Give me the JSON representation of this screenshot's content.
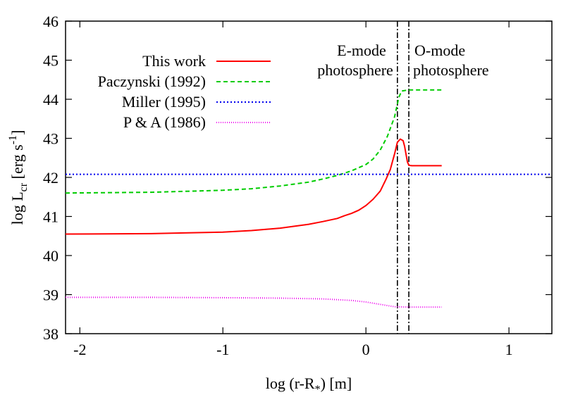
{
  "chart_data": {
    "type": "line",
    "title": "",
    "xlabel_parts": {
      "main": "log (r-R",
      "sub": "*",
      "tail": ") [m]"
    },
    "ylabel_parts": {
      "main": "log L",
      "sub": "cr",
      "mid": " [erg s",
      "sup": "-1",
      "tail": "]"
    },
    "xlim": [
      -2.1,
      1.3
    ],
    "ylim": [
      38,
      46
    ],
    "xticks": [
      -2,
      -1,
      0,
      1
    ],
    "xtick_labels": [
      "-2",
      "-1",
      "0",
      "1"
    ],
    "yticks": [
      38,
      39,
      40,
      41,
      42,
      43,
      44,
      45,
      46
    ],
    "ytick_labels": [
      "38",
      "39",
      "40",
      "41",
      "42",
      "43",
      "44",
      "45",
      "46"
    ],
    "grid": false,
    "legend_position": "top-left",
    "series": [
      {
        "name": "This work",
        "color": "#ff0000",
        "dash": "solid",
        "x": [
          -2.1,
          -1.5,
          -1.0,
          -0.8,
          -0.6,
          -0.4,
          -0.3,
          -0.2,
          -0.15,
          -0.1,
          -0.05,
          0.0,
          0.05,
          0.1,
          0.14,
          0.17,
          0.2,
          0.22,
          0.24,
          0.26,
          0.27,
          0.28,
          0.29,
          0.3,
          0.32,
          0.4,
          0.53
        ],
        "y": [
          40.55,
          40.56,
          40.6,
          40.64,
          40.7,
          40.8,
          40.87,
          40.95,
          41.02,
          41.08,
          41.16,
          41.28,
          41.44,
          41.65,
          41.95,
          42.2,
          42.6,
          42.9,
          42.98,
          42.94,
          42.8,
          42.6,
          42.4,
          42.31,
          42.3,
          42.3,
          42.3
        ],
        "annotation": ""
      },
      {
        "name": "Paczynski (1992)",
        "color": "#00cc00",
        "dash": "6,4",
        "x": [
          -2.1,
          -1.5,
          -1.0,
          -0.8,
          -0.6,
          -0.4,
          -0.3,
          -0.2,
          -0.1,
          0.0,
          0.05,
          0.1,
          0.15,
          0.2,
          0.23,
          0.25,
          0.3,
          0.53
        ],
        "y": [
          41.6,
          41.62,
          41.67,
          41.71,
          41.78,
          41.88,
          41.96,
          42.05,
          42.17,
          42.33,
          42.47,
          42.7,
          43.05,
          43.55,
          44.05,
          44.21,
          44.24,
          44.24
        ]
      },
      {
        "name": "Miller (1995)",
        "color": "#0000ee",
        "dash": "2,3",
        "x": [
          -2.1,
          1.3
        ],
        "y": [
          42.08,
          42.08
        ]
      },
      {
        "name": "P & A (1986)",
        "color": "#ee00ee",
        "dash": "1,2",
        "x": [
          -2.1,
          -1.5,
          -1.0,
          -0.6,
          -0.3,
          -0.1,
          0.0,
          0.1,
          0.2,
          0.3,
          0.53
        ],
        "y": [
          38.93,
          38.93,
          38.92,
          38.91,
          38.89,
          38.85,
          38.81,
          38.75,
          38.69,
          38.68,
          38.68
        ]
      }
    ],
    "vlines": [
      {
        "x": 0.22,
        "style": "dash-dot"
      },
      {
        "x": 0.3,
        "style": "dash-dot"
      }
    ],
    "annotations": [
      {
        "line1": "E-mode",
        "line2": "photosphere",
        "side": "left"
      },
      {
        "line1": "O-mode",
        "line2": "photosphere",
        "side": "right"
      }
    ]
  }
}
